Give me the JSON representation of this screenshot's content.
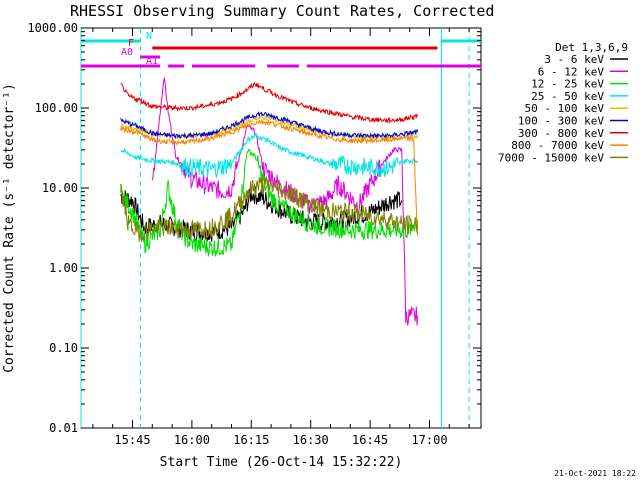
{
  "chart_data": {
    "type": "line",
    "title": "RHESSI Observing Summary Count Rates, Corrected",
    "xlabel": "Start Time (26-Oct-14 15:32:22)",
    "ylabel": "Corrected Count Rate (s⁻¹ detector⁻¹)",
    "yscale": "log",
    "ylim": [
      0.01,
      1000
    ],
    "xlim_minutes": [
      "15:32",
      "17:13"
    ],
    "y_ticks": [
      "1000.00",
      "100.00",
      "10.00",
      "1.00",
      "0.10",
      "0.01"
    ],
    "x_ticks": [
      "15:45",
      "16:00",
      "16:15",
      "16:30",
      "16:45",
      "17:00"
    ],
    "legend_title": "Det 1,3,6,9",
    "legend_position": "right",
    "footer": "21-Oct-2021 18:22",
    "flags": [
      {
        "label": "N",
        "color": "#00e5e5",
        "segments": [
          [
            "15:32",
            "15:47"
          ],
          [
            "17:03",
            "17:13"
          ]
        ]
      },
      {
        "label": "F",
        "color": "#e00000",
        "segments": [
          [
            "15:50",
            "17:02"
          ]
        ]
      },
      {
        "label": "A0",
        "color": "#e000e0",
        "segments": [
          [
            "15:47",
            "15:52"
          ]
        ]
      },
      {
        "label": "A1",
        "color": "#e000e0",
        "segments": [
          [
            "15:32",
            "15:52"
          ],
          [
            "15:54",
            "15:58"
          ],
          [
            "16:00",
            "16:16"
          ],
          [
            "16:19",
            "16:27"
          ],
          [
            "16:29",
            "17:13"
          ]
        ]
      }
    ],
    "vertical_markers": [
      {
        "time": "15:32",
        "style": "solid",
        "color": "#00e5e5"
      },
      {
        "time": "15:47",
        "style": "dashed",
        "color": "#00e5e5"
      },
      {
        "time": "17:03",
        "style": "solid",
        "color": "#00e5e5"
      },
      {
        "time": "17:10",
        "style": "dashed",
        "color": "#00e5e5"
      }
    ],
    "series": [
      {
        "name": "3 - 6 keV",
        "color": "#000000",
        "points": [
          [
            "15:42",
            8
          ],
          [
            "15:45",
            7
          ],
          [
            "15:48",
            3.2
          ],
          [
            "15:52",
            3.6
          ],
          [
            "15:55",
            3.3
          ],
          [
            "16:00",
            2.9
          ],
          [
            "16:05",
            2.8
          ],
          [
            "16:10",
            3.2
          ],
          [
            "16:13",
            5
          ],
          [
            "16:15",
            8.5
          ],
          [
            "16:18",
            7.5
          ],
          [
            "16:22",
            5.5
          ],
          [
            "16:25",
            4.5
          ],
          [
            "16:30",
            3.8
          ],
          [
            "16:35",
            3.8
          ],
          [
            "16:40",
            4.2
          ],
          [
            "16:45",
            5
          ],
          [
            "16:48",
            6
          ],
          [
            "16:50",
            7
          ],
          [
            "16:53",
            7
          ]
        ]
      },
      {
        "name": "6 - 12 keV",
        "color": "#e000e0",
        "points": [
          [
            "15:50",
            10
          ],
          [
            "15:52",
            90
          ],
          [
            "15:53",
            250
          ],
          [
            "15:54",
            90
          ],
          [
            "15:56",
            25
          ],
          [
            "15:58",
            18
          ],
          [
            "16:00",
            13
          ],
          [
            "16:05",
            10
          ],
          [
            "16:08",
            9
          ],
          [
            "16:10",
            10
          ],
          [
            "16:14",
            60
          ],
          [
            "16:16",
            50
          ],
          [
            "16:18",
            18
          ],
          [
            "16:22",
            11
          ],
          [
            "16:26",
            8
          ],
          [
            "16:30",
            6
          ],
          [
            "16:34",
            7
          ],
          [
            "16:37",
            11
          ],
          [
            "16:42",
            6
          ],
          [
            "16:45",
            11
          ],
          [
            "16:48",
            20
          ],
          [
            "16:51",
            30
          ],
          [
            "16:53",
            30
          ],
          [
            "16:54",
            0.25
          ],
          [
            "16:57",
            0.25
          ]
        ]
      },
      {
        "name": "12 - 25 keV",
        "color": "#00e000",
        "points": [
          [
            "15:42",
            9
          ],
          [
            "15:45",
            5
          ],
          [
            "15:48",
            2
          ],
          [
            "15:52",
            3
          ],
          [
            "15:54",
            10
          ],
          [
            "15:56",
            4
          ],
          [
            "15:58",
            2.5
          ],
          [
            "16:00",
            2.0
          ],
          [
            "16:05",
            1.8
          ],
          [
            "16:10",
            1.9
          ],
          [
            "16:12",
            5
          ],
          [
            "16:14",
            30
          ],
          [
            "16:16",
            25
          ],
          [
            "16:19",
            9
          ],
          [
            "16:22",
            6
          ],
          [
            "16:25",
            5
          ],
          [
            "16:30",
            3.5
          ],
          [
            "16:35",
            3.2
          ],
          [
            "16:40",
            3
          ],
          [
            "16:45",
            3
          ],
          [
            "16:50",
            3
          ],
          [
            "16:55",
            3
          ],
          [
            "16:57",
            4
          ]
        ]
      },
      {
        "name": "25 - 50 keV",
        "color": "#00e5e5",
        "points": [
          [
            "15:42",
            30
          ],
          [
            "15:46",
            24
          ],
          [
            "15:50",
            22
          ],
          [
            "15:55",
            21
          ],
          [
            "16:00",
            18
          ],
          [
            "16:05",
            17
          ],
          [
            "16:10",
            20
          ],
          [
            "16:14",
            40
          ],
          [
            "16:16",
            45
          ],
          [
            "16:19",
            40
          ],
          [
            "16:22",
            32
          ],
          [
            "16:26",
            27
          ],
          [
            "16:30",
            24
          ],
          [
            "16:35",
            20
          ],
          [
            "16:40",
            19
          ],
          [
            "16:45",
            18
          ],
          [
            "16:50",
            18
          ],
          [
            "16:52",
            20
          ],
          [
            "16:54",
            22
          ],
          [
            "16:57",
            22
          ]
        ]
      },
      {
        "name": "50 - 100 keV",
        "color": "#e0c000",
        "points": [
          [
            "15:42",
            60
          ],
          [
            "15:46",
            55
          ],
          [
            "15:50",
            48
          ],
          [
            "15:55",
            45
          ],
          [
            "16:00",
            45
          ],
          [
            "16:05",
            47
          ],
          [
            "16:10",
            55
          ],
          [
            "16:14",
            65
          ],
          [
            "16:16",
            75
          ],
          [
            "16:19",
            75
          ],
          [
            "16:22",
            68
          ],
          [
            "16:26",
            60
          ],
          [
            "16:30",
            52
          ],
          [
            "16:35",
            48
          ],
          [
            "16:40",
            45
          ],
          [
            "16:45",
            43
          ],
          [
            "16:50",
            43
          ],
          [
            "16:53",
            43
          ],
          [
            "16:57",
            45
          ]
        ]
      },
      {
        "name": "100 - 300 keV",
        "color": "#0000e0",
        "points": [
          [
            "15:42",
            70
          ],
          [
            "15:46",
            60
          ],
          [
            "15:50",
            48
          ],
          [
            "15:55",
            45
          ],
          [
            "16:00",
            45
          ],
          [
            "16:05",
            48
          ],
          [
            "16:10",
            60
          ],
          [
            "16:14",
            75
          ],
          [
            "16:17",
            85
          ],
          [
            "16:20",
            80
          ],
          [
            "16:24",
            70
          ],
          [
            "16:28",
            60
          ],
          [
            "16:32",
            52
          ],
          [
            "16:36",
            48
          ],
          [
            "16:40",
            46
          ],
          [
            "16:45",
            45
          ],
          [
            "16:50",
            45
          ],
          [
            "16:53",
            47
          ],
          [
            "16:57",
            50
          ]
        ]
      },
      {
        "name": "300 - 800 keV",
        "color": "#e00000",
        "points": [
          [
            "15:42",
            200
          ],
          [
            "15:44",
            140
          ],
          [
            "15:47",
            125
          ],
          [
            "15:50",
            105
          ],
          [
            "15:55",
            100
          ],
          [
            "16:00",
            100
          ],
          [
            "16:05",
            110
          ],
          [
            "16:10",
            130
          ],
          [
            "16:14",
            170
          ],
          [
            "16:16",
            200
          ],
          [
            "16:19",
            165
          ],
          [
            "16:22",
            140
          ],
          [
            "16:26",
            115
          ],
          [
            "16:30",
            100
          ],
          [
            "16:35",
            88
          ],
          [
            "16:40",
            78
          ],
          [
            "16:45",
            72
          ],
          [
            "16:50",
            70
          ],
          [
            "16:53",
            72
          ],
          [
            "16:57",
            80
          ]
        ]
      },
      {
        "name": "800 - 7000 keV",
        "color": "#ff8000",
        "points": [
          [
            "15:42",
            55
          ],
          [
            "15:46",
            50
          ],
          [
            "15:50",
            40
          ],
          [
            "15:55",
            37
          ],
          [
            "16:00",
            38
          ],
          [
            "16:05",
            42
          ],
          [
            "16:10",
            50
          ],
          [
            "16:14",
            60
          ],
          [
            "16:17",
            68
          ],
          [
            "16:20",
            65
          ],
          [
            "16:24",
            57
          ],
          [
            "16:28",
            50
          ],
          [
            "16:32",
            45
          ],
          [
            "16:36",
            41
          ],
          [
            "16:40",
            39
          ],
          [
            "16:45",
            39
          ],
          [
            "16:50",
            40
          ],
          [
            "16:53",
            42
          ],
          [
            "16:56",
            40
          ],
          [
            "16:57",
            2.5
          ]
        ]
      },
      {
        "name": "7000 - 15000 keV",
        "color": "#808000",
        "points": [
          [
            "15:42",
            10
          ],
          [
            "15:44",
            3.5
          ],
          [
            "15:47",
            2.7
          ],
          [
            "15:50",
            3.2
          ],
          [
            "15:55",
            3.2
          ],
          [
            "16:00",
            3.0
          ],
          [
            "16:05",
            3.2
          ],
          [
            "16:10",
            4.5
          ],
          [
            "16:14",
            9
          ],
          [
            "16:17",
            11
          ],
          [
            "16:20",
            10.5
          ],
          [
            "16:24",
            9
          ],
          [
            "16:28",
            7
          ],
          [
            "16:32",
            5.5
          ],
          [
            "16:36",
            5
          ],
          [
            "16:40",
            5
          ],
          [
            "16:45",
            4.5
          ],
          [
            "16:50",
            4
          ],
          [
            "16:53",
            3.5
          ],
          [
            "16:57",
            3.5
          ]
        ]
      }
    ]
  }
}
